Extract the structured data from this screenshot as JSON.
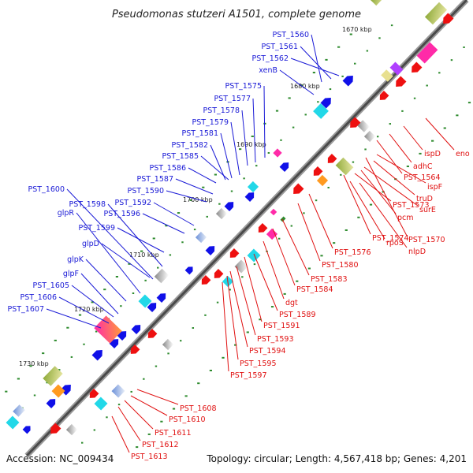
{
  "title": "Pseudomonas stutzeri A1501, complete genome",
  "accession": "Accession: NC_009434",
  "summary": "Topology: circular; Length: 4,567,418 bp; Genes: 4,201",
  "colors": {
    "forward_label": "#1a1ad6",
    "reverse_label": "#e01010",
    "backbone": "#555555",
    "gc_dot": "#2e8b2e"
  },
  "ticks": [
    "1670 kbp",
    "1680 kbp",
    "1690 kbp",
    "1700 kbp",
    "1710 kbp",
    "1720 kbp",
    "1730 kbp"
  ],
  "forward_labels": [
    "PST_1560",
    "PST_1561",
    "PST_1562",
    "xenB",
    "PST_1575",
    "PST_1577",
    "PST_1578",
    "PST_1579",
    "PST_1581",
    "PST_1582",
    "PST_1585",
    "PST_1586",
    "PST_1587",
    "PST_1590",
    "PST_1592",
    "PST_1596",
    "PST_1598",
    "PST_1600",
    "PST_1599",
    "glpD",
    "glpR",
    "glpK",
    "glpF",
    "PST_1605",
    "PST_1606",
    "PST_1607"
  ],
  "reverse_labels": [
    "eno",
    "ispD",
    "adhC",
    "PST_1564",
    "ispF",
    "truD",
    "pcm",
    "PST_1573",
    "surE",
    "PST_1570",
    "PST_1574",
    "rpoS",
    "nlpD",
    "PST_1576",
    "PST_1580",
    "PST_1583",
    "PST_1584",
    "dgt",
    "PST_1589",
    "PST_1591",
    "PST_1593",
    "PST_1594",
    "PST_1595",
    "PST_1597",
    "PST_1608",
    "PST_1610",
    "PST_1611",
    "PST_1612",
    "PST_1613"
  ]
}
